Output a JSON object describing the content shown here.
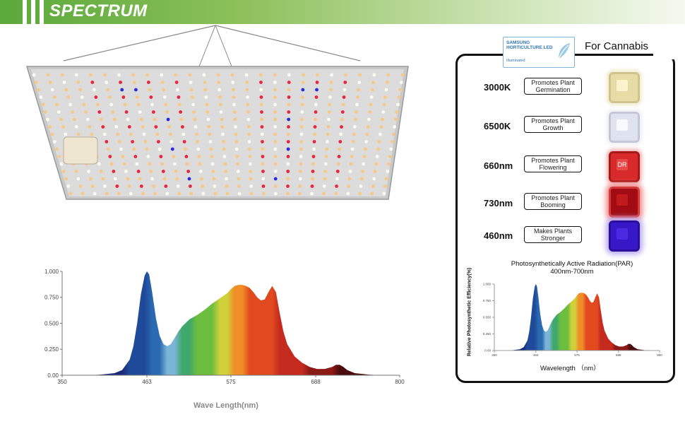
{
  "banner": {
    "title": "SPECTRUM"
  },
  "badge": {
    "brand_line1": "SAMSUNG",
    "brand_line2": "HORTICULTURE LED",
    "sub": "Illuminated",
    "heading": "For Cannabis"
  },
  "spectrum_rows": [
    {
      "label": "3000K",
      "desc1": "Promotes Plant",
      "desc2": "Germination",
      "chip_color": "#f4e7b0",
      "chip_text": ""
    },
    {
      "label": "6500K",
      "desc1": "Promotes Plant",
      "desc2": "Growth",
      "chip_color": "#e8ecf6",
      "chip_text": ""
    },
    {
      "label": "660nm",
      "desc1": "Promotes Plant",
      "desc2": "Flowering",
      "chip_color": "#d82a2a",
      "chip_text": "DR"
    },
    {
      "label": "730nm",
      "desc1": "Promotes Plant",
      "desc2": "Booming",
      "chip_color": "#a00c12",
      "chip_text": ""
    },
    {
      "label": "460nm",
      "desc1": "Makes Plants",
      "desc2": "Stronger",
      "chip_color": "#3618c8",
      "chip_text": ""
    }
  ],
  "par": {
    "title1": "Photosynthetically Active Radiation(PAR)",
    "title2": "400nm-700nm",
    "ylabel": "Relative Photosynthetic Efficiency(%)",
    "xlabel": "Wavelength （nm）"
  },
  "chart_data": [
    {
      "type": "area",
      "title": "",
      "xlabel": "Wave Length(nm)",
      "ylabel": "",
      "xlim": [
        350,
        800
      ],
      "ylim": [
        0,
        1
      ],
      "xticks": [
        "350",
        "463",
        "575",
        "688",
        "800"
      ],
      "yticks": [
        "0.00",
        "0.250",
        "0.500",
        "0.750",
        "1.000"
      ],
      "grid": false,
      "series": [
        {
          "x": [
            380,
            400,
            420,
            430,
            440,
            445,
            450,
            455,
            460,
            463,
            466,
            470,
            475,
            480,
            485,
            490,
            495,
            500,
            505,
            510,
            520,
            530,
            540,
            550,
            560,
            570,
            575,
            580,
            585,
            590,
            595,
            600,
            605,
            610,
            615,
            620,
            625,
            630,
            635,
            640,
            645,
            650,
            660,
            670,
            680,
            690,
            700,
            710,
            715,
            720,
            725,
            730,
            740,
            760,
            780
          ],
          "y": [
            0.0,
            0.005,
            0.02,
            0.05,
            0.15,
            0.28,
            0.5,
            0.78,
            0.96,
            1.0,
            0.97,
            0.8,
            0.55,
            0.38,
            0.3,
            0.28,
            0.3,
            0.36,
            0.42,
            0.47,
            0.54,
            0.58,
            0.63,
            0.69,
            0.74,
            0.79,
            0.83,
            0.86,
            0.87,
            0.87,
            0.86,
            0.84,
            0.8,
            0.75,
            0.72,
            0.73,
            0.8,
            0.86,
            0.8,
            0.6,
            0.42,
            0.3,
            0.18,
            0.12,
            0.08,
            0.06,
            0.06,
            0.08,
            0.1,
            0.1,
            0.08,
            0.05,
            0.02,
            0.005,
            0.0
          ]
        }
      ]
    },
    {
      "type": "area",
      "title": "Photosynthetically Active Radiation(PAR)",
      "xlabel": "Wavelength （nm）",
      "ylabel": "Relative Photosynthetic Efficiency(%)",
      "xlim": [
        350,
        800
      ],
      "ylim": [
        0,
        1
      ],
      "xticks": [
        "350",
        "463",
        "575",
        "688",
        "800"
      ],
      "yticks": [
        "0.00",
        "0.250",
        "0.500",
        "0.750",
        "1.000"
      ],
      "grid": false,
      "series": [
        {
          "x": [
            380,
            400,
            420,
            430,
            440,
            445,
            450,
            455,
            460,
            463,
            466,
            470,
            475,
            480,
            485,
            490,
            495,
            500,
            505,
            510,
            520,
            530,
            540,
            550,
            560,
            570,
            575,
            580,
            585,
            590,
            595,
            600,
            605,
            610,
            615,
            620,
            625,
            630,
            635,
            640,
            645,
            650,
            660,
            670,
            680,
            690,
            700,
            710,
            715,
            720,
            725,
            730,
            740,
            760,
            780
          ],
          "y": [
            0.0,
            0.005,
            0.02,
            0.05,
            0.15,
            0.28,
            0.5,
            0.78,
            0.96,
            1.0,
            0.97,
            0.8,
            0.55,
            0.38,
            0.3,
            0.28,
            0.3,
            0.36,
            0.42,
            0.47,
            0.54,
            0.58,
            0.63,
            0.69,
            0.74,
            0.79,
            0.83,
            0.86,
            0.87,
            0.87,
            0.86,
            0.84,
            0.8,
            0.75,
            0.72,
            0.73,
            0.8,
            0.86,
            0.8,
            0.6,
            0.42,
            0.3,
            0.18,
            0.12,
            0.08,
            0.06,
            0.06,
            0.08,
            0.1,
            0.1,
            0.08,
            0.05,
            0.02,
            0.005,
            0.0
          ]
        }
      ]
    }
  ]
}
